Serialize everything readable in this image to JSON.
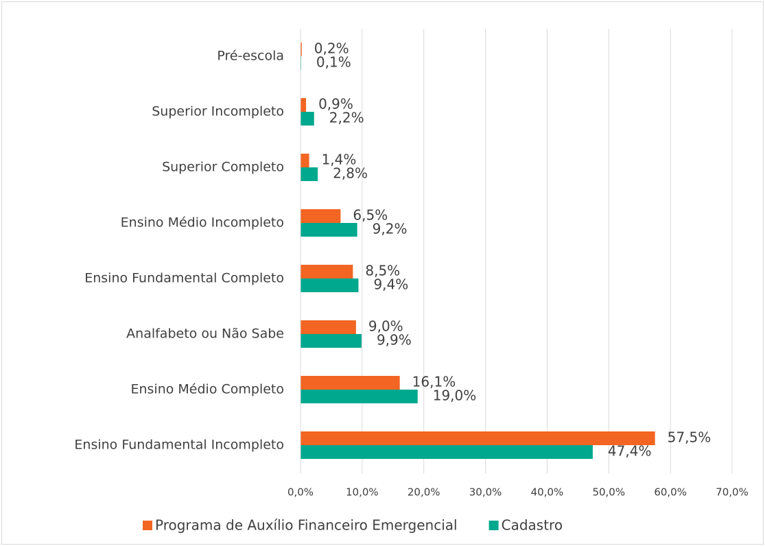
{
  "chart_data": {
    "type": "bar",
    "orientation": "horizontal",
    "categories": [
      "Pré-escola",
      "Superior Incompleto",
      "Superior Completo",
      "Ensino Médio Incompleto",
      "Ensino Fundamental Completo",
      "Analfabeto ou Não Sabe",
      "Ensino Médio Completo",
      "Ensino Fundamental Incompleto"
    ],
    "series": [
      {
        "name": "Programa de Auxílio Financeiro Emergencial",
        "color": "#f26522",
        "values": [
          0.2,
          0.9,
          1.4,
          6.5,
          8.5,
          9.0,
          16.1,
          57.5
        ],
        "value_labels": [
          "0,2%",
          "0,9%",
          "1,4%",
          "6,5%",
          "8,5%",
          "9,0%",
          "16,1%",
          "57,5%"
        ]
      },
      {
        "name": "Cadastro",
        "color": "#00a88e",
        "values": [
          0.1,
          2.2,
          2.8,
          9.2,
          9.4,
          9.9,
          19.0,
          47.4
        ],
        "value_labels": [
          "0,1%",
          "2,2%",
          "2,8%",
          "9,2%",
          "9,4%",
          "9,9%",
          "19,0%",
          "47,4%"
        ]
      }
    ],
    "xlim": [
      0,
      70
    ],
    "xticks": [
      {
        "value": 0,
        "label": "0,0%"
      },
      {
        "value": 10,
        "label": "10,0%"
      },
      {
        "value": 20,
        "label": "20,0%"
      },
      {
        "value": 30,
        "label": "30,0%"
      },
      {
        "value": 40,
        "label": "40,0%"
      },
      {
        "value": 50,
        "label": "50,0%"
      },
      {
        "value": 60,
        "label": "60,0%"
      },
      {
        "value": 70,
        "label": "70,0%"
      }
    ],
    "grid": true,
    "legend": "bottom"
  }
}
